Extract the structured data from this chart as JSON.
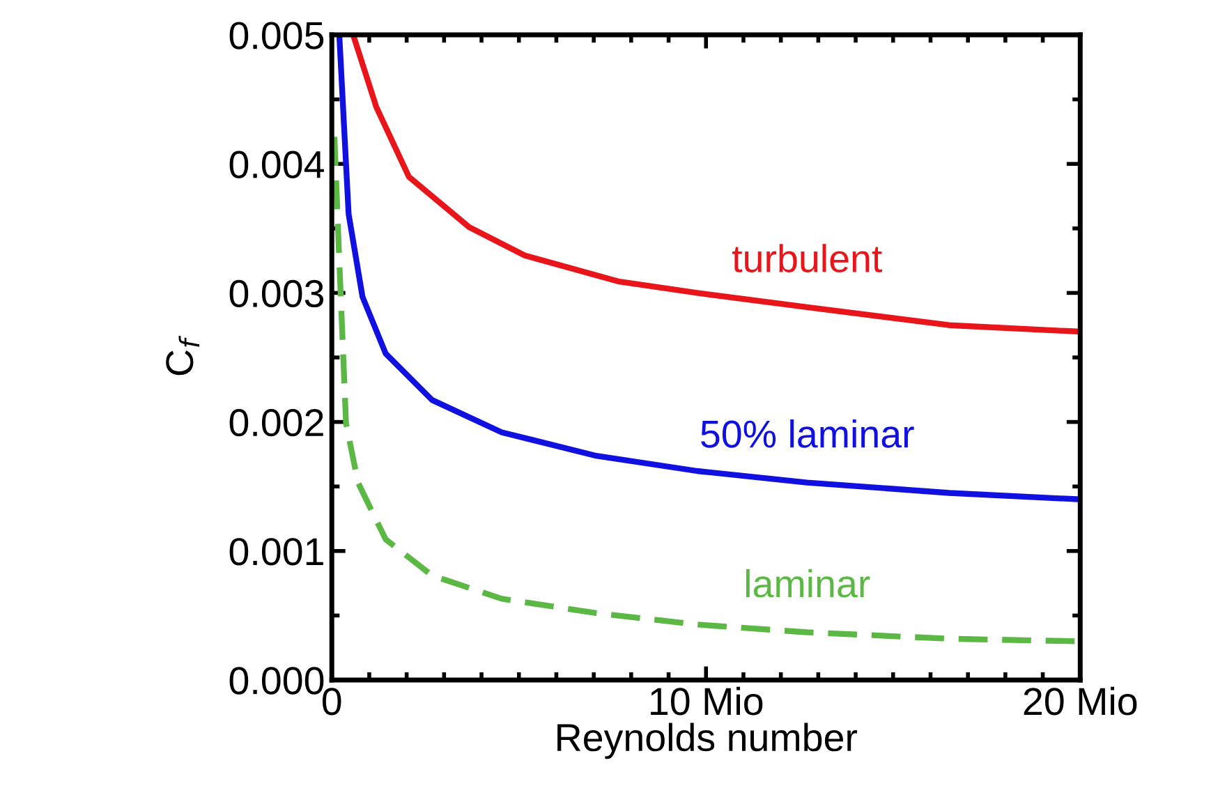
{
  "chart_data": {
    "type": "line",
    "xlabel": "Reynolds number",
    "ylabel": "C$_{f}$",
    "xlim": [
      0,
      20
    ],
    "ylim": [
      0,
      0.005
    ],
    "xticks": [
      {
        "value": 0,
        "label": "0"
      },
      {
        "value": 10,
        "label": "10 Mio"
      },
      {
        "value": 20,
        "label": "20 Mio"
      }
    ],
    "yticks": [
      {
        "value": 0,
        "label": "0.000"
      },
      {
        "value": 0.001,
        "label": "0.001"
      },
      {
        "value": 0.002,
        "label": "0.002"
      },
      {
        "value": 0.003,
        "label": "0.003"
      },
      {
        "value": 0.004,
        "label": "0.004"
      },
      {
        "value": 0.005,
        "label": "0.005"
      }
    ],
    "grid": false,
    "legend": false,
    "series": [
      {
        "name": "turbulent",
        "color": "#e8161b",
        "line_style": "solid",
        "x": [
          0.57,
          1.19,
          2.06,
          3.67,
          5.16,
          7.65,
          9.76,
          12.7,
          16.5,
          20
        ],
        "values": [
          0.005,
          0.00444,
          0.0039,
          0.00351,
          0.00329,
          0.00309,
          0.003,
          0.00289,
          0.00275,
          0.0027
        ]
      },
      {
        "name": "50% laminar",
        "color": "#1010e0",
        "line_style": "solid",
        "x": [
          0.2,
          0.45,
          0.82,
          1.44,
          2.68,
          4.54,
          7.03,
          9.76,
          12.7,
          16.5,
          20
        ],
        "values": [
          0.005,
          0.00361,
          0.00297,
          0.00253,
          0.00217,
          0.00192,
          0.00174,
          0.00162,
          0.00153,
          0.00145,
          0.0014
        ]
      },
      {
        "name": "laminar",
        "color": "#5cb845",
        "line_style": "dashed",
        "x": [
          0.07,
          0.2,
          0.38,
          0.7,
          1.44,
          2.68,
          4.54,
          7.03,
          9.76,
          12.7,
          16.5,
          20
        ],
        "values": [
          0.00421,
          0.00325,
          0.00199,
          0.00153,
          0.00109,
          0.00081,
          0.00063,
          0.00052,
          0.00043,
          0.00037,
          0.00032,
          0.0003
        ]
      }
    ]
  }
}
